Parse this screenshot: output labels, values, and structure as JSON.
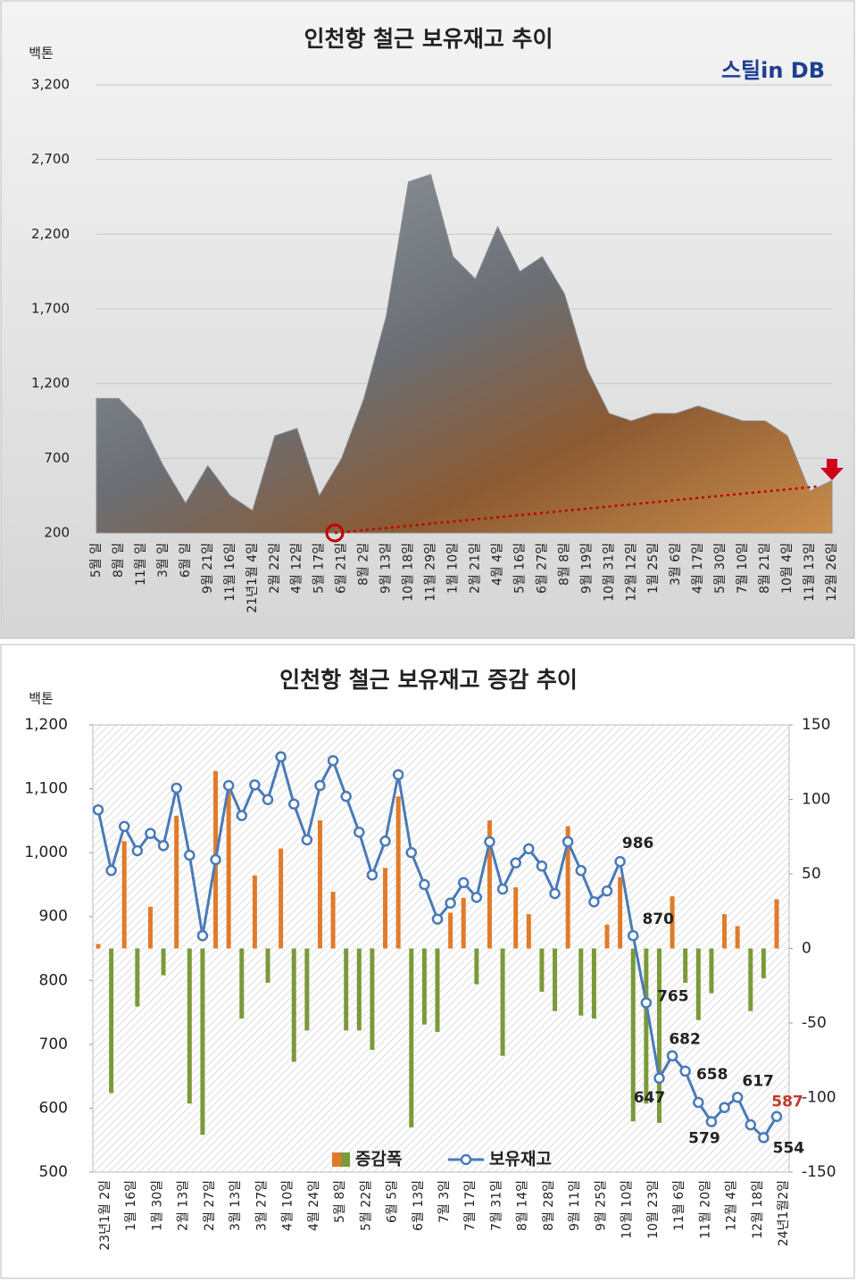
{
  "chart_data": [
    {
      "type": "area",
      "title": "인천항 철근 보유재고 추이",
      "y_unit": "백톤",
      "logo": "스틸in DB",
      "categories": [
        "5월 일",
        "8월 일",
        "11월 일",
        "3월 일",
        "6월 일",
        "9월 21일",
        "11월 16일",
        "21년1월 4일",
        "2월 22일",
        "4월 12일",
        "5월 17일",
        "6월 21일",
        "8월 2일",
        "9월 13일",
        "10월 18일",
        "11월 29일",
        "1월 10일",
        "2월 21일",
        "4월 4일",
        "5월 16일",
        "6월 27일",
        "8월 8일",
        "9월 19일",
        "10월 31일",
        "12월 12일",
        "1월 25일",
        "3월 6일",
        "4월 17일",
        "5월 30일",
        "7월 10일",
        "8월 21일",
        "10월 4일",
        "11월 13일",
        "12월 26일"
      ],
      "values": [
        1100,
        1100,
        950,
        650,
        400,
        650,
        450,
        350,
        850,
        900,
        450,
        700,
        1100,
        1650,
        2550,
        2600,
        2050,
        1900,
        2250,
        1950,
        2050,
        1800,
        1300,
        1000,
        950,
        1000,
        1000,
        1050,
        1000,
        950,
        950,
        850,
        480,
        550
      ],
      "color": "#8a8f96",
      "ylim": [
        200,
        3200
      ],
      "yticks": [
        200,
        700,
        {
          "value": 1200,
          "label": "1,200"
        },
        {
          "value": 1700,
          "label": "1,700"
        },
        {
          "value": 2200,
          "label": "2,200"
        },
        {
          "value": 2700,
          "label": "2,700"
        },
        {
          "value": 3200,
          "label": "3,200"
        }
      ],
      "grid": true
    },
    {
      "type": "bar_line",
      "title": "인천항 철근 보유재고 증감 추이",
      "y_unit": "백톤",
      "categories": [
        "23년1월 2일",
        null,
        "1월 16일",
        null,
        "1월 30일",
        null,
        "2월 13일",
        null,
        "2월 27일",
        null,
        "3월 13일",
        null,
        "3월 27일",
        null,
        "4월 10일",
        null,
        "4월 24일",
        null,
        "5월 8일",
        null,
        "5월 22일",
        null,
        "6월 5일",
        null,
        "6월 13일",
        null,
        "7월 3일",
        null,
        "7월 17일",
        null,
        "7월 31일",
        null,
        "8월 14일",
        null,
        "8월 28일",
        null,
        "9월 11일",
        null,
        "9월 25일",
        null,
        "10월 10일",
        null,
        "10월 23일",
        null,
        "11월 6일",
        null,
        "11월 20일",
        null,
        "12월 4일",
        null,
        "12월 18일",
        null,
        "24년1월2일"
      ],
      "series": [
        {
          "name": "증감폭",
          "type": "bar",
          "axis": "y2",
          "color": "#e07b2a",
          "negative_color": "#7a9a3a",
          "values": [
            3,
            -97,
            72,
            -39,
            28,
            -18,
            89,
            -104,
            -125,
            119,
            111,
            -47,
            49,
            -23,
            67,
            -76,
            -55,
            86,
            38,
            -55,
            -55,
            -68,
            54,
            102,
            -120,
            -51,
            -56,
            24,
            34,
            -24,
            86,
            -72,
            41,
            23,
            -29,
            -42,
            82,
            -45,
            -47,
            16,
            48,
            -116,
            -104,
            -117,
            35,
            -23,
            -48,
            -30,
            23,
            15,
            -42,
            -20,
            33
          ]
        },
        {
          "name": "보유재고",
          "type": "line",
          "color": "#4a7ab8",
          "values": [
            1067,
            972,
            1041,
            1003,
            1030,
            1011,
            1101,
            996,
            870,
            989,
            1105,
            1058,
            1106,
            1083,
            1150,
            1076,
            1020,
            1105,
            1144,
            1088,
            1032,
            965,
            1018,
            1122,
            1000,
            950,
            896,
            921,
            953,
            930,
            1017,
            943,
            984,
            1006,
            979,
            936,
            1017,
            972,
            923,
            940,
            986,
            870,
            765,
            647,
            682,
            658,
            609,
            579,
            601,
            617,
            574,
            554,
            587
          ],
          "value_labels": [
            null,
            null,
            null,
            null,
            null,
            null,
            null,
            null,
            null,
            null,
            null,
            null,
            null,
            null,
            null,
            null,
            null,
            null,
            null,
            null,
            null,
            null,
            null,
            null,
            null,
            null,
            null,
            null,
            null,
            null,
            null,
            null,
            null,
            null,
            null,
            null,
            null,
            null,
            null,
            null,
            "986",
            "870",
            "765",
            "647",
            "682",
            "658",
            null,
            "579",
            null,
            "617",
            null,
            "554",
            "587"
          ],
          "last_label_color": "#c0392b"
        }
      ],
      "ylim": [
        500,
        1200
      ],
      "yticks": [
        500,
        600,
        700,
        800,
        900,
        {
          "value": 1000,
          "label": "1,000"
        },
        {
          "value": 1100,
          "label": "1,100"
        },
        {
          "value": 1200,
          "label": "1,200"
        }
      ],
      "y2lim": [
        -150,
        150
      ],
      "y2ticks": [
        -150,
        -100,
        -50,
        0,
        50,
        100,
        150
      ],
      "legend": "bottom"
    }
  ]
}
